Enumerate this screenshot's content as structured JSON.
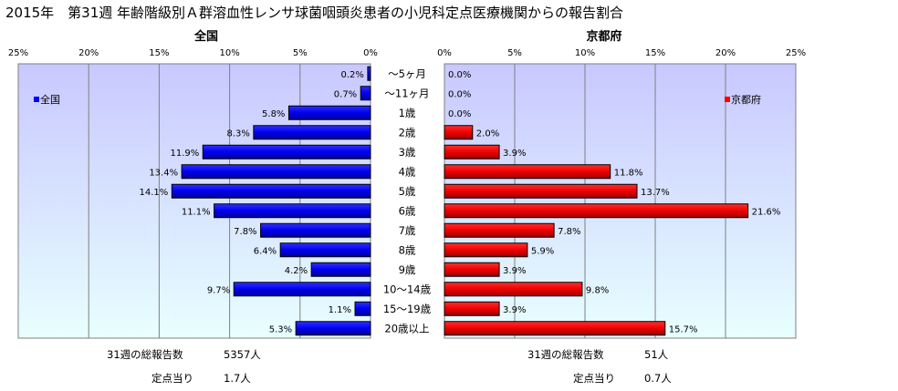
{
  "title": "2015年　第31週 年齢階級別Ａ群溶血性レンサ球菌咽頭炎患者の小児科定点医療機関からの報告割合",
  "chart_data": {
    "type": "bar",
    "orientation": "horizontal-butterfly",
    "categories": [
      "～5ヶ月",
      "～11ヶ月",
      "1歳",
      "2歳",
      "3歳",
      "4歳",
      "5歳",
      "6歳",
      "7歳",
      "8歳",
      "9歳",
      "10～14歳",
      "15～19歳",
      "20歳以上"
    ],
    "xlim": [
      0,
      25
    ],
    "xticks": [
      "0%",
      "5%",
      "10%",
      "15%",
      "20%",
      "25%"
    ],
    "grid": true,
    "series": [
      {
        "name": "全国",
        "panel_title": "全国",
        "legend": "全国",
        "legend_position": "top-left",
        "color": "#0000ff",
        "values": [
          0.2,
          0.7,
          5.8,
          8.3,
          11.9,
          13.4,
          14.1,
          11.1,
          7.8,
          6.4,
          4.2,
          9.7,
          1.1,
          5.3
        ],
        "labels": [
          "0.2%",
          "0.7%",
          "5.8%",
          "8.3%",
          "11.9%",
          "13.4%",
          "14.1%",
          "11.1%",
          "7.8%",
          "6.4%",
          "4.2%",
          "9.7%",
          "1.1%",
          "5.3%"
        ]
      },
      {
        "name": "京都府",
        "panel_title": "京都府",
        "legend": "京都府",
        "legend_position": "top-right",
        "color": "#ff0000",
        "values": [
          0.0,
          0.0,
          0.0,
          2.0,
          3.9,
          11.8,
          13.7,
          21.6,
          7.8,
          5.9,
          3.9,
          9.8,
          3.9,
          15.7
        ],
        "labels": [
          "0.0%",
          "0.0%",
          "0.0%",
          "2.0%",
          "3.9%",
          "11.8%",
          "13.7%",
          "21.6%",
          "7.8%",
          "5.9%",
          "3.9%",
          "9.8%",
          "3.9%",
          "15.7%"
        ]
      }
    ]
  },
  "footer": {
    "national": {
      "total_label": "31週の総報告数",
      "total_value": "5357人",
      "per_site_label": "定点当り",
      "per_site_value": "1.7人"
    },
    "kyoto": {
      "total_label": "31週の総報告数",
      "total_value": "51人",
      "per_site_label": "定点当り",
      "per_site_value": "0.7人"
    }
  },
  "colors": {
    "plot_top": "#c8c8ff",
    "plot_bottom": "#e6ffff",
    "grid": "#808080"
  }
}
